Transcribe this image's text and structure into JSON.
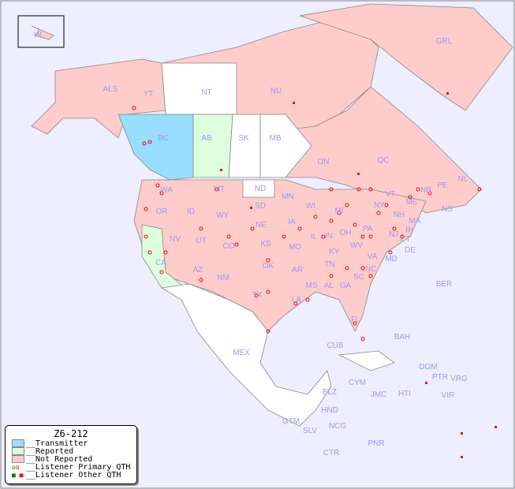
{
  "map": {
    "labels": [
      "HI",
      "ALS",
      "YT",
      "NT",
      "NU",
      "GRL",
      "BC",
      "AB",
      "SK",
      "MB",
      "ON",
      "QC",
      "NL",
      "NS",
      "WA",
      "OR",
      "ID",
      "MT",
      "ND",
      "SD",
      "MN",
      "WI",
      "MI",
      "NY",
      "VT",
      "NH",
      "MA",
      "CT",
      "RI",
      "NJ",
      "PA",
      "DE",
      "MD",
      "OH",
      "IN",
      "IL",
      "IA",
      "NE",
      "WY",
      "NV",
      "CA",
      "UT",
      "CO",
      "KS",
      "MO",
      "KY",
      "WV",
      "VA",
      "NC",
      "TN",
      "AR",
      "OK",
      "AZ",
      "NM",
      "TX",
      "LA",
      "MS",
      "AL",
      "GA",
      "SC",
      "FL",
      "ME",
      "NB",
      "PE",
      "BER",
      "BAH",
      "CUB",
      "MEX",
      "DOM",
      "PTR",
      "VRG",
      "VIR",
      "CYM",
      "JMC",
      "HTI",
      "BLZ",
      "HND",
      "GTM",
      "SLV",
      "NCG",
      "CTR",
      "PNR"
    ],
    "colors": {
      "background": "#eeeeff",
      "transmitter": "#99ddff",
      "reported": "#ddffdd",
      "not_reported": "#ffcccc",
      "other": "#ffffff",
      "dot": "#ff0000",
      "border": "#888888"
    }
  },
  "legend": {
    "title": "Z6-212",
    "items": [
      "__Transmitter",
      "__Reported",
      "__Not Reported",
      "__Listener Primary QTH",
      "__Listener Other QTH"
    ]
  }
}
